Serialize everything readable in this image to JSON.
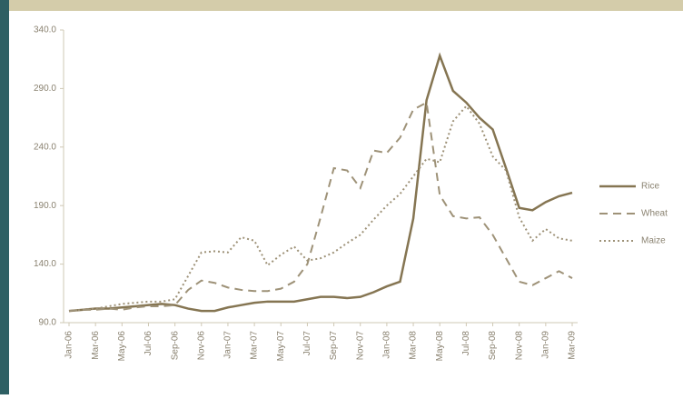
{
  "chart_data": {
    "type": "line",
    "categories": [
      "Jan-06",
      null,
      "Mar-06",
      null,
      "May-06",
      null,
      "Jul-06",
      null,
      "Sep-06",
      null,
      "Nov-06",
      null,
      "Jan-07",
      null,
      "Mar-07",
      null,
      "May-07",
      null,
      "Jul-07",
      null,
      "Sep-07",
      null,
      "Nov-07",
      null,
      "Jan-08",
      null,
      "Mar-08",
      null,
      "May-08",
      null,
      "Jul-08",
      null,
      "Sep-08",
      null,
      "Nov-08",
      null,
      "Jan-09",
      null,
      "Mar-09"
    ],
    "series": [
      {
        "name": "Rice",
        "color": "#857552",
        "style": "solid",
        "values": [
          100,
          101,
          102,
          102,
          103,
          104,
          105,
          106,
          105,
          102,
          100,
          100,
          103,
          105,
          107,
          108,
          108,
          108,
          110,
          112,
          112,
          111,
          112,
          116,
          121,
          125,
          179,
          280,
          318,
          288,
          278,
          265,
          255,
          222,
          188,
          186,
          193,
          198,
          201
        ]
      },
      {
        "name": "Wheat",
        "color": "#9e9278",
        "style": "dashed",
        "values": [
          100,
          101,
          101,
          102,
          101,
          103,
          104,
          104,
          105,
          118,
          126,
          124,
          120,
          118,
          117,
          117,
          119,
          125,
          140,
          180,
          222,
          220,
          205,
          237,
          235,
          248,
          272,
          278,
          199,
          181,
          179,
          180,
          165,
          145,
          125,
          122,
          128,
          134,
          128
        ]
      },
      {
        "name": "Maize",
        "color": "#9e9278",
        "style": "dotted",
        "values": [
          100,
          101,
          102,
          104,
          106,
          107,
          108,
          108,
          110,
          130,
          150,
          151,
          150,
          163,
          160,
          139,
          148,
          155,
          143,
          145,
          150,
          158,
          165,
          178,
          190,
          200,
          215,
          230,
          227,
          262,
          275,
          260,
          232,
          220,
          180,
          160,
          170,
          162,
          160
        ]
      }
    ],
    "ylim": [
      90,
      340
    ],
    "yticks": [
      {
        "value": 90,
        "label": "90.0"
      },
      {
        "value": 140,
        "label": "140.0"
      },
      {
        "value": 190,
        "label": "190.0"
      },
      {
        "value": 240,
        "label": "240.0"
      },
      {
        "value": 290,
        "label": "290.0"
      },
      {
        "value": 340,
        "label": "340.0"
      }
    ]
  }
}
